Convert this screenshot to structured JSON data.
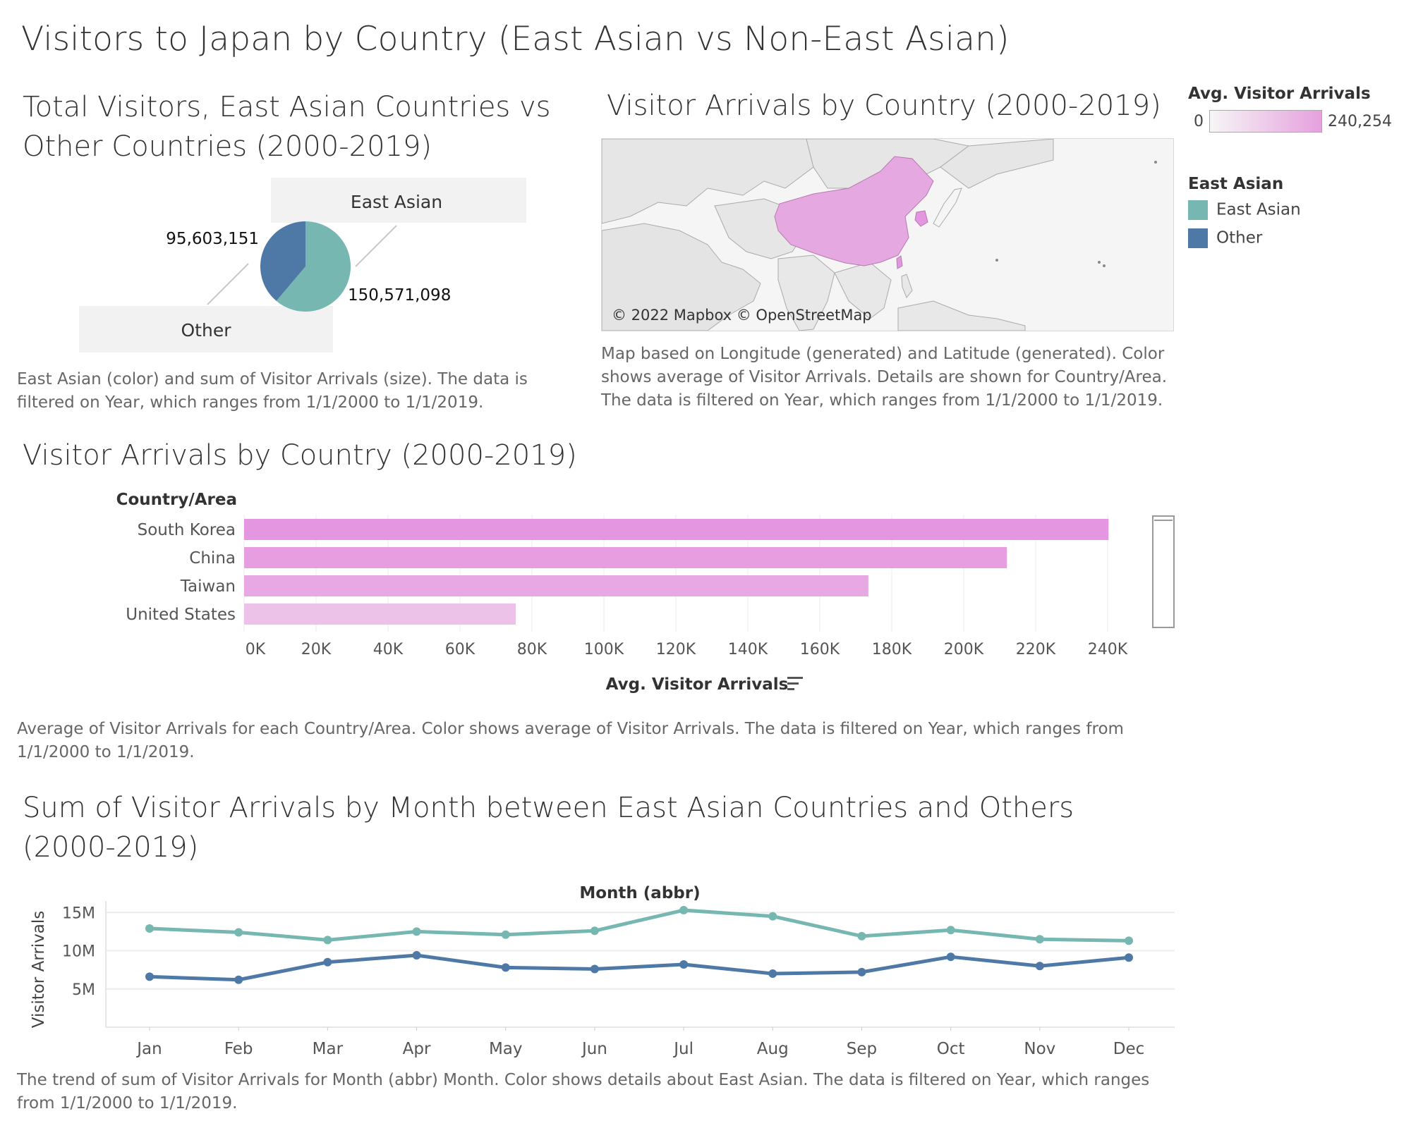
{
  "dashboard": {
    "title": "Visitors to Japan by Country (East Asian vs Non-East Asian)"
  },
  "colors": {
    "east_asian": "#76b7b2",
    "other": "#4e79a7",
    "map_fill": "#e6a8e0",
    "bar_fill": "#e596e0"
  },
  "pie": {
    "title": "Total Visitors, East Asian Countries vs Other Countries (2000-2019)",
    "label_east_asian": "East Asian",
    "label_other": "Other",
    "value_other_label": "95,603,151",
    "value_east_label": "150,571,098",
    "caption": "East Asian (color) and sum of Visitor Arrivals (size). The data is filtered on Year, which ranges from 1/1/2000 to 1/1/2019."
  },
  "map": {
    "title": "Visitor Arrivals by Country (2000-2019)",
    "attribution": "© 2022 Mapbox © OpenStreetMap",
    "caption": "Map based on Longitude (generated) and Latitude (generated).  Color shows average of Visitor Arrivals.  Details are shown for Country/Area. The data is filtered on Year, which ranges from 1/1/2000 to 1/1/2019."
  },
  "legend": {
    "color_title": "Avg. Visitor Arrivals",
    "color_min": "0",
    "color_max": "240,254",
    "cat_title": "East Asian",
    "items": [
      "East Asian",
      "Other"
    ]
  },
  "bar": {
    "title": "Visitor Arrivals by Country (2000-2019)",
    "caption": "Average of Visitor Arrivals for each Country/Area.  Color shows average of Visitor Arrivals. The data is filtered on Year, which ranges from 1/1/2000 to 1/1/2019."
  },
  "line": {
    "title": "Sum of Visitor Arrivals by Month between East Asian Countries and Others (2000-2019)",
    "caption": "The trend of sum of Visitor Arrivals for Month (abbr) Month.  Color shows details about East Asian. The data is filtered on Year, which ranges from 1/1/2000 to 1/1/2019."
  },
  "chart_data": [
    {
      "type": "pie",
      "title": "Total Visitors, East Asian Countries vs Other Countries (2000-2019)",
      "categories": [
        "East Asian",
        "Other"
      ],
      "values": [
        150571098,
        95603151
      ]
    },
    {
      "type": "bar",
      "orientation": "horizontal",
      "title": "Visitor Arrivals by Country (2000-2019)",
      "ylabel": "Country/Area",
      "xlabel": "Avg. Visitor Arrivals",
      "categories": [
        "South Korea",
        "China",
        "Taiwan",
        "United States"
      ],
      "values": [
        240254,
        212000,
        173500,
        75500
      ],
      "xlim": [
        0,
        240000
      ],
      "xticks": [
        "0K",
        "20K",
        "40K",
        "60K",
        "80K",
        "100K",
        "120K",
        "140K",
        "160K",
        "180K",
        "200K",
        "220K",
        "240K"
      ],
      "grid": true
    },
    {
      "type": "line",
      "title": "Sum of Visitor Arrivals by Month between East Asian Countries and Others (2000-2019)",
      "xlabel": "Month (abbr)",
      "ylabel": "Visitor Arrivals",
      "categories": [
        "Jan",
        "Feb",
        "Mar",
        "Apr",
        "May",
        "Jun",
        "Jul",
        "Aug",
        "Sep",
        "Oct",
        "Nov",
        "Dec"
      ],
      "yticks": [
        "5M",
        "10M",
        "15M"
      ],
      "ylim": [
        0,
        16500000
      ],
      "series": [
        {
          "name": "East Asian",
          "values": [
            12900000,
            12400000,
            11400000,
            12500000,
            12100000,
            12600000,
            15300000,
            14500000,
            11900000,
            12700000,
            11500000,
            11300000
          ]
        },
        {
          "name": "Other",
          "values": [
            6600000,
            6200000,
            8500000,
            9400000,
            7800000,
            7600000,
            8200000,
            7000000,
            7200000,
            9200000,
            8000000,
            9100000
          ]
        }
      ],
      "grid": true
    }
  ]
}
